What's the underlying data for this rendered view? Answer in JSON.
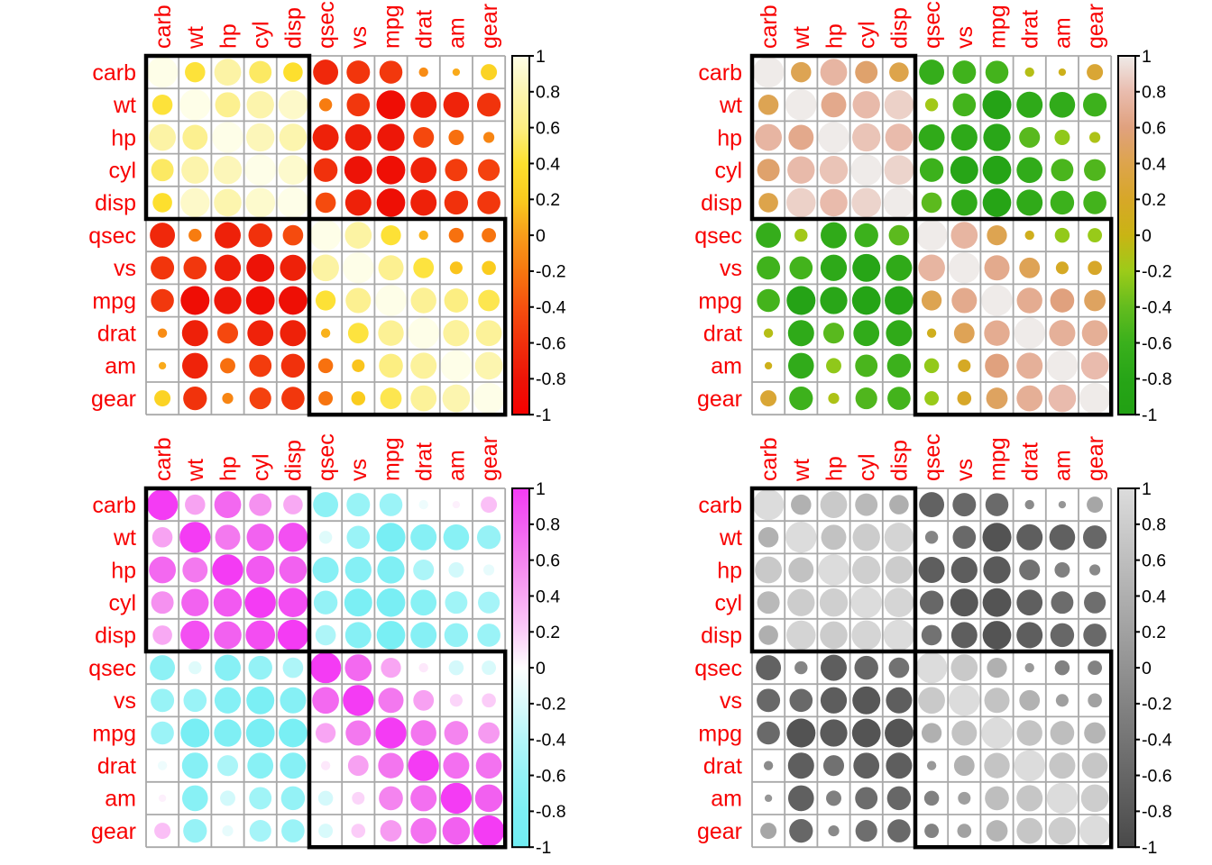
{
  "chart_data": {
    "type": "heatmap",
    "style": "correlation-bubble-matrix (corrplot), 2x2 panel grid, circle size = |r|, color = r",
    "variables": [
      "carb",
      "wt",
      "hp",
      "cyl",
      "disp",
      "qsec",
      "vs",
      "mpg",
      "drat",
      "am",
      "gear"
    ],
    "matrix": [
      [
        1.0,
        0.428,
        0.75,
        0.527,
        0.395,
        -0.656,
        -0.57,
        -0.551,
        -0.091,
        0.058,
        0.274
      ],
      [
        0.428,
        1.0,
        0.659,
        0.782,
        0.888,
        -0.175,
        -0.555,
        -0.868,
        -0.712,
        -0.692,
        -0.583
      ],
      [
        0.75,
        0.659,
        1.0,
        0.832,
        0.791,
        -0.708,
        -0.723,
        -0.776,
        -0.449,
        -0.243,
        -0.126
      ],
      [
        0.527,
        0.782,
        0.832,
        1.0,
        0.902,
        -0.591,
        -0.811,
        -0.852,
        -0.7,
        -0.523,
        -0.493
      ],
      [
        0.395,
        0.888,
        0.791,
        0.902,
        1.0,
        -0.434,
        -0.71,
        -0.848,
        -0.71,
        -0.591,
        -0.556
      ],
      [
        -0.656,
        -0.175,
        -0.708,
        -0.591,
        -0.434,
        1.0,
        0.745,
        0.419,
        0.091,
        -0.23,
        -0.213
      ],
      [
        -0.57,
        -0.555,
        -0.723,
        -0.811,
        -0.71,
        0.745,
        1.0,
        0.664,
        0.44,
        0.168,
        0.206
      ],
      [
        -0.551,
        -0.868,
        -0.776,
        -0.852,
        -0.848,
        0.419,
        0.664,
        1.0,
        0.681,
        0.6,
        0.48
      ],
      [
        -0.091,
        -0.712,
        -0.449,
        -0.7,
        -0.71,
        0.091,
        0.44,
        0.681,
        1.0,
        0.713,
        0.7
      ],
      [
        0.058,
        -0.692,
        -0.243,
        -0.523,
        -0.591,
        -0.23,
        0.168,
        0.6,
        0.713,
        1.0,
        0.794
      ],
      [
        0.274,
        -0.583,
        -0.126,
        -0.493,
        -0.556,
        -0.213,
        0.206,
        0.48,
        0.7,
        0.794,
        1.0
      ]
    ],
    "cluster_rects": [
      {
        "start": 0,
        "end": 4
      },
      {
        "start": 5,
        "end": 10
      }
    ],
    "colorbar": {
      "ticks": [
        "1",
        "0.8",
        "0.6",
        "0.4",
        "0.2",
        "0",
        "-0.2",
        "-0.4",
        "-0.6",
        "-0.8",
        "-1"
      ],
      "range": [
        1,
        -1
      ]
    },
    "panels": [
      {
        "id": "top-left",
        "palette_name": "yellow-orange-red",
        "stops_plus1_to_minus1": [
          "#FEFEE8",
          "#FCF5B0",
          "#FCEE82",
          "#FDE02E",
          "#FACB1E",
          "#F89D1A",
          "#F7770F",
          "#F6500F",
          "#F1300C",
          "#EC1407",
          "#F60000"
        ]
      },
      {
        "id": "top-right",
        "palette_name": "pink-tan-green",
        "stops_plus1_to_minus1": [
          "#EFEBE9",
          "#E9BCAE",
          "#E0A17E",
          "#DDA44C",
          "#D7A728",
          "#C9B414",
          "#9CCB19",
          "#63BC1E",
          "#3AB01C",
          "#27A517",
          "#21A013"
        ]
      },
      {
        "id": "bottom-left",
        "palette_name": "magenta-white-cyan",
        "stops_plus1_to_minus1": [
          "#F43BF4",
          "#F25FF0",
          "#F484EF",
          "#F8A8F3",
          "#FBCDF8",
          "#FEFEFE",
          "#DAFAFB",
          "#B4F6F9",
          "#93F2F6",
          "#7CEFF4",
          "#70EDF3"
        ]
      },
      {
        "id": "bottom-right",
        "palette_name": "grayscale",
        "stops_plus1_to_minus1": [
          "#DCDCDC",
          "#CDCDCD",
          "#BEBEBE",
          "#AFAFAF",
          "#A1A1A1",
          "#929292",
          "#838383",
          "#757575",
          "#666666",
          "#585858",
          "#494949"
        ]
      }
    ],
    "colors": {
      "text_labels": "#F80000",
      "grid_lines": "#A9A9A9",
      "cluster_rect": "#000000",
      "colorbar_border": "#000000",
      "tick_text": "#000000",
      "background": "#FFFFFF"
    },
    "legend_position": "right-of-each-panel",
    "grid": true
  }
}
